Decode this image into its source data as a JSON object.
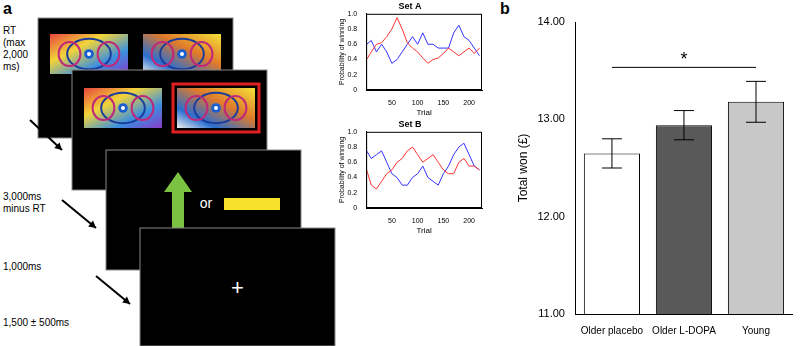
{
  "panel_labels": [
    "a",
    "b"
  ],
  "diagram": {
    "timings": [
      [
        "RT",
        "(max",
        "2,000",
        "ms)"
      ],
      [
        "3,000ms",
        "minus RT"
      ],
      [
        "1,000ms"
      ],
      [
        "1,500 ± 500ms"
      ]
    ],
    "choice_or": "or",
    "fixation": "+"
  },
  "chart_data": [
    {
      "type": "line",
      "title": "Set A",
      "x_label": "Trial",
      "y_label": "Probability of winning",
      "x": [
        1,
        10,
        20,
        30,
        40,
        50,
        60,
        70,
        80,
        90,
        100,
        110,
        120,
        130,
        140,
        150,
        160,
        170,
        180,
        190,
        200,
        210,
        220
      ],
      "series": [
        {
          "color": "#ff3333",
          "values": [
            0.4,
            0.5,
            0.6,
            0.62,
            0.7,
            0.8,
            0.95,
            0.8,
            0.62,
            0.55,
            0.5,
            0.42,
            0.35,
            0.4,
            0.42,
            0.48,
            0.55,
            0.5,
            0.45,
            0.5,
            0.55,
            0.48,
            0.55
          ]
        },
        {
          "color": "#3333ff",
          "values": [
            0.6,
            0.65,
            0.5,
            0.6,
            0.5,
            0.35,
            0.4,
            0.5,
            0.6,
            0.7,
            0.6,
            0.75,
            0.6,
            0.6,
            0.55,
            0.55,
            0.55,
            0.75,
            0.85,
            0.7,
            0.65,
            0.55,
            0.45
          ]
        }
      ],
      "xlim": [
        0,
        225
      ],
      "xticks": [
        50,
        100,
        150,
        200
      ],
      "ylim": [
        0,
        1
      ],
      "yticks": [
        0,
        0.2,
        0.4,
        0.6,
        0.8,
        {
          "value": 1,
          "label": "1.0"
        }
      ],
      "grid": false
    },
    {
      "type": "line",
      "title": "Set B",
      "x_label": "Trial",
      "y_label": "Probability of winning",
      "x": [
        1,
        10,
        20,
        30,
        40,
        50,
        60,
        70,
        80,
        90,
        100,
        110,
        120,
        130,
        140,
        150,
        160,
        170,
        180,
        190,
        200,
        210,
        220
      ],
      "series": [
        {
          "color": "#ff3333",
          "values": [
            0.5,
            0.3,
            0.25,
            0.35,
            0.45,
            0.5,
            0.6,
            0.65,
            0.75,
            0.8,
            0.7,
            0.6,
            0.65,
            0.7,
            0.6,
            0.5,
            0.45,
            0.45,
            0.6,
            0.65,
            0.55,
            0.55,
            0.5
          ]
        },
        {
          "color": "#3333ff",
          "values": [
            0.75,
            0.65,
            0.7,
            0.75,
            0.6,
            0.45,
            0.4,
            0.3,
            0.3,
            0.4,
            0.45,
            0.55,
            0.4,
            0.35,
            0.3,
            0.45,
            0.55,
            0.7,
            0.8,
            0.85,
            0.7,
            0.55,
            0.5
          ]
        }
      ],
      "xlim": [
        0,
        225
      ],
      "xticks": [
        50,
        100,
        150,
        200
      ],
      "ylim": [
        0,
        1
      ],
      "yticks": [
        0,
        0.2,
        0.4,
        0.6,
        0.8,
        {
          "value": 1,
          "label": "1.0"
        }
      ],
      "grid": false
    },
    {
      "type": "bar",
      "y_label": "Total won (£)",
      "categories": [
        "Older placebo",
        "Older L-DOPA",
        "Young"
      ],
      "values": [
        12.65,
        12.94,
        13.18
      ],
      "errors": [
        0.15,
        0.15,
        0.21
      ],
      "colors": [
        "#ffffff",
        "#595959",
        "#c8c8c8"
      ],
      "ylim": [
        11,
        14
      ],
      "yticks": [
        {
          "value": 11,
          "label": "11.00"
        },
        {
          "value": 12,
          "label": "12.00"
        },
        {
          "value": 13,
          "label": "13.00"
        },
        {
          "value": 14,
          "label": "14.00"
        }
      ],
      "grid": false,
      "annotations": [
        {
          "text": "*",
          "from": "Older placebo",
          "to": "Young"
        }
      ]
    }
  ]
}
